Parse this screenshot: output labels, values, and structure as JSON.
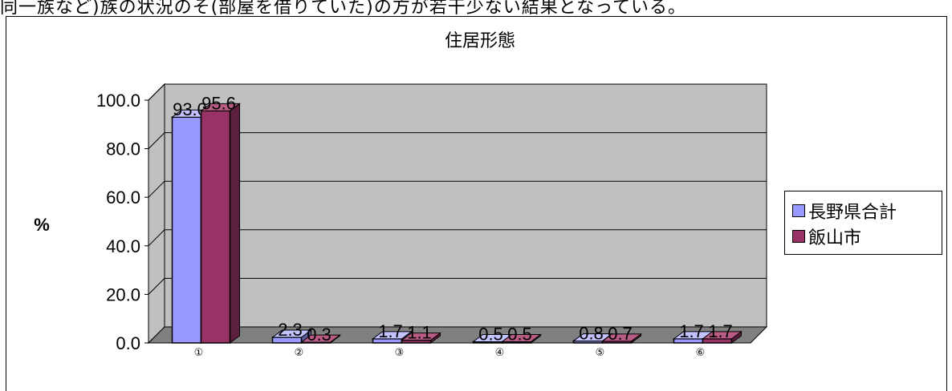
{
  "page": {
    "top_text": "同一族など)族の状況のそ(部屋を借りていた)の方が若干少ない結果となっている。"
  },
  "chart_data": {
    "type": "bar",
    "title": "住居形態",
    "ylabel": "%",
    "xlabel": "",
    "ylim": [
      0,
      100
    ],
    "yticks": [
      "0.0",
      "20.0",
      "40.0",
      "60.0",
      "80.0",
      "100.0"
    ],
    "categories": [
      "①",
      "②",
      "③",
      "④",
      "⑤",
      "⑥"
    ],
    "series": [
      {
        "name": "長野県合計",
        "values": [
          93.0,
          2.3,
          1.7,
          0.5,
          0.8,
          1.7
        ],
        "labels": [
          "93.0",
          "2.3",
          "1.7",
          "0.5",
          "0.8",
          "1.7"
        ],
        "color": "#9999FF",
        "side_color": "#5B5B99",
        "top_color": "#C2C2FF"
      },
      {
        "name": "飯山市",
        "values": [
          95.6,
          0.3,
          1.1,
          0.5,
          0.7,
          1.7
        ],
        "labels": [
          "95.6",
          "0.3",
          "1.1",
          "0.5",
          "0.7",
          "1.7"
        ],
        "color": "#993366",
        "side_color": "#5C1F3D",
        "top_color": "#B85C85"
      }
    ],
    "wall_color": "#C0C0C0",
    "floor_color": "#808080",
    "grid": true,
    "legend_position": "right",
    "three_d": true
  }
}
